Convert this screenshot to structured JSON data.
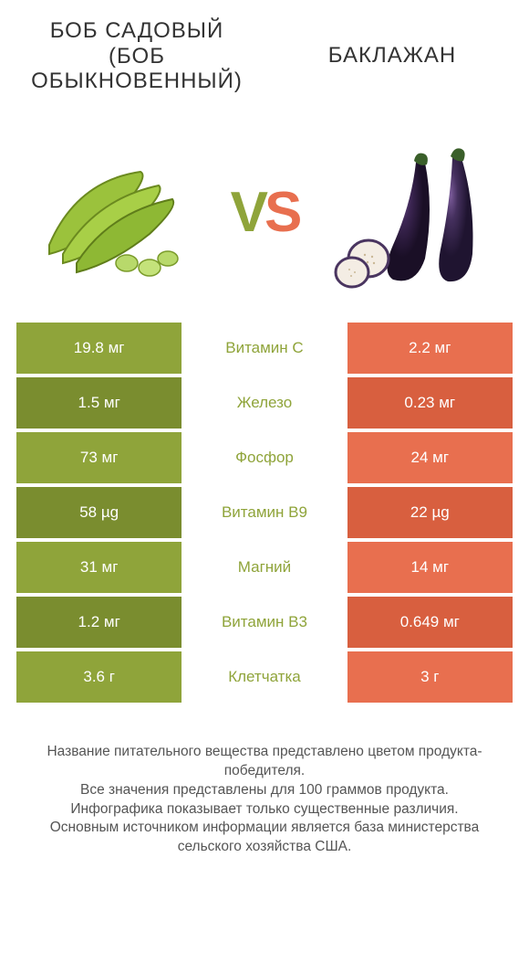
{
  "colors": {
    "left": "#8fa43a",
    "right": "#e86f4f",
    "left_dark": "#7a8d2f",
    "right_dark": "#d85f3f"
  },
  "header": {
    "left_title": "БОБ САДОВЫЙ (БОБ ОБЫКНОВЕННЫЙ)",
    "right_title": "БАКЛАЖАН",
    "vs_v": "V",
    "vs_s": "S"
  },
  "rows": [
    {
      "left": "19.8 мг",
      "mid": "Витамин C",
      "right": "2.2 мг",
      "winner": "left"
    },
    {
      "left": "1.5 мг",
      "mid": "Железо",
      "right": "0.23 мг",
      "winner": "left"
    },
    {
      "left": "73 мг",
      "mid": "Фосфор",
      "right": "24 мг",
      "winner": "left"
    },
    {
      "left": "58 µg",
      "mid": "Витамин B9",
      "right": "22 µg",
      "winner": "left"
    },
    {
      "left": "31 мг",
      "mid": "Магний",
      "right": "14 мг",
      "winner": "left"
    },
    {
      "left": "1.2 мг",
      "mid": "Витамин B3",
      "right": "0.649 мг",
      "winner": "left"
    },
    {
      "left": "3.6 г",
      "mid": "Клетчатка",
      "right": "3 г",
      "winner": "left"
    }
  ],
  "footer": {
    "line1": "Название питательного вещества представлено цветом продукта-победителя.",
    "line2": "Все значения представлены для 100 граммов продукта.",
    "line3": "Инфографика показывает только существенные различия.",
    "line4": "Основным источником информации является база министерства сельского хозяйства США."
  }
}
